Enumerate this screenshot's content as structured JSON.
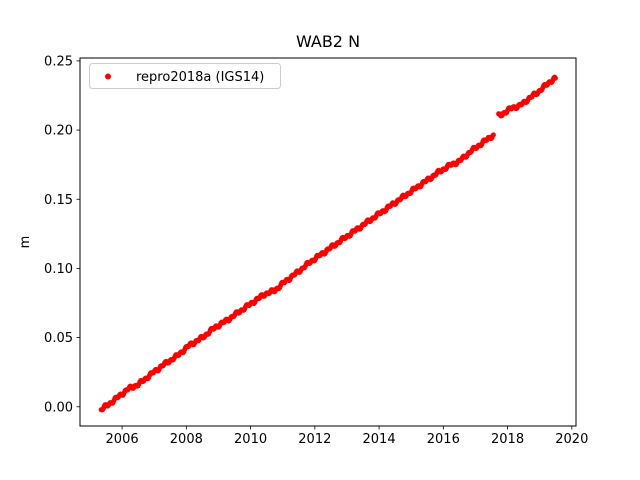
{
  "figure": {
    "background": "#ffffff",
    "title": "WAB2 N"
  },
  "chart_data": {
    "type": "scatter",
    "title": "WAB2 N",
    "xlabel": "",
    "ylabel": "m",
    "grid": false,
    "xlim": [
      2004.69,
      2020.13
    ],
    "ylim": [
      -0.0139,
      0.2521
    ],
    "xticks": [
      2006,
      2008,
      2010,
      2012,
      2014,
      2016,
      2018,
      2020
    ],
    "xtick_labels": [
      "2006",
      "2008",
      "2010",
      "2012",
      "2014",
      "2016",
      "2018",
      "2020"
    ],
    "yticks": [
      0.0,
      0.05,
      0.1,
      0.15,
      0.2,
      0.25
    ],
    "ytick_labels": [
      "0.00",
      "0.05",
      "0.10",
      "0.15",
      "0.20",
      "0.25"
    ],
    "legend": {
      "position": "upper-left",
      "entries": [
        {
          "label": "repro2018a (IGS14)",
          "color": "#ff0000",
          "marker": "dot"
        }
      ]
    },
    "series": [
      {
        "name": "repro2018a (IGS14)",
        "color": "#ff0000",
        "marker": "dot",
        "description": "North displacement time series, near-linear trend ~0.016 m/yr with offset jump of ~+0.014 m at 2017.6",
        "segments": [
          [
            [
              2005.35,
              -0.002
            ],
            [
              2005.6,
              0.002
            ],
            [
              2005.9,
              0.0075
            ],
            [
              2006.2,
              0.013
            ],
            [
              2006.5,
              0.016
            ],
            [
              2006.9,
              0.0235
            ],
            [
              2007.3,
              0.0305
            ],
            [
              2007.7,
              0.0365
            ],
            [
              2008.1,
              0.0445
            ],
            [
              2008.5,
              0.05
            ],
            [
              2008.9,
              0.0575
            ],
            [
              2009.3,
              0.063
            ],
            [
              2009.7,
              0.0695
            ],
            [
              2010.1,
              0.076
            ],
            [
              2010.45,
              0.0815
            ],
            [
              2010.75,
              0.084
            ],
            [
              2011.05,
              0.09
            ],
            [
              2011.45,
              0.097
            ],
            [
              2011.85,
              0.1045
            ],
            [
              2012.25,
              0.111
            ],
            [
              2012.65,
              0.1175
            ],
            [
              2013.05,
              0.124
            ],
            [
              2013.45,
              0.1305
            ],
            [
              2013.85,
              0.137
            ],
            [
              2014.25,
              0.1435
            ],
            [
              2014.65,
              0.15
            ],
            [
              2015.05,
              0.1565
            ],
            [
              2015.45,
              0.163
            ],
            [
              2015.85,
              0.1695
            ],
            [
              2016.2,
              0.1745
            ],
            [
              2016.5,
              0.1775
            ],
            [
              2016.85,
              0.1845
            ],
            [
              2017.2,
              0.1905
            ],
            [
              2017.56,
              0.1965
            ]
          ],
          [
            [
              2017.72,
              0.2105
            ],
            [
              2017.95,
              0.213
            ],
            [
              2018.15,
              0.2165
            ],
            [
              2018.35,
              0.217
            ],
            [
              2018.65,
              0.2225
            ],
            [
              2018.95,
              0.2275
            ],
            [
              2019.2,
              0.2325
            ],
            [
              2019.35,
              0.2355
            ],
            [
              2019.49,
              0.2375
            ]
          ]
        ]
      }
    ],
    "style": {
      "spine_color": "#000000",
      "tick_color": "#000000",
      "legend_border_color": "#cccccc",
      "legend_face_color": "#ffffff"
    }
  }
}
